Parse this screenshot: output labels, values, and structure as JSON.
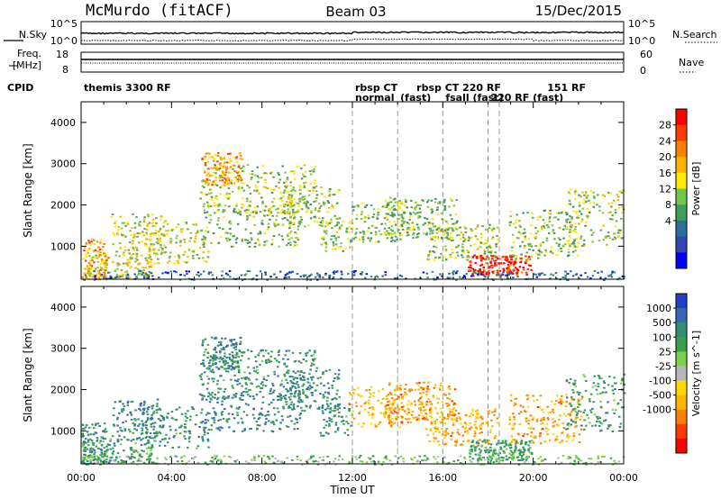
{
  "chart_data": {
    "type": "heatmap",
    "header": {
      "station": "McMurdo (fitACF)",
      "beam": "Beam 03",
      "date": "15/Dec/2015"
    },
    "summary_panels": {
      "nsky_label": "N.Sky",
      "nsky_ticks": [
        "10^5",
        "10^0"
      ],
      "nsearch_label": "N.Search",
      "nsearch_ticks": [
        "10^5",
        "10^0"
      ],
      "freq_label": "Freq.",
      "freq_unit": "[MHz]",
      "freq_ticks": [
        "18",
        "8"
      ],
      "nave_label": "Nave",
      "nave_ticks": [
        "60",
        "0"
      ],
      "cpid_label": "CPID",
      "cpid_segments": [
        {
          "start_hour": 0,
          "label": "themis 3300 RF"
        },
        {
          "start_hour": 12,
          "label": "rbsp CT"
        },
        {
          "start_hour": 12,
          "label": "normal"
        },
        {
          "start_hour": 14,
          "label": "rbsp CT 220 RF"
        },
        {
          "start_hour": 14,
          "label": "(fast)"
        },
        {
          "start_hour": 16,
          "label": "fsall (fast)"
        },
        {
          "start_hour": 18,
          "label": "220 RF (fast)"
        },
        {
          "start_hour": 20.5,
          "label": "151 RF"
        }
      ]
    },
    "panels": [
      {
        "parameter": "Power",
        "colorbar_label": "Power [dB]",
        "colorbar_ticks": [
          "28",
          "24",
          "20",
          "16",
          "12",
          "8",
          "4"
        ],
        "colorbar_colors": [
          "#ff0000",
          "#ff3a00",
          "#ff7f00",
          "#ffb400",
          "#ffe800",
          "#6fc74b",
          "#3a9f5a",
          "#2a6f9c",
          "#3447b7",
          "#0000ff"
        ],
        "ylabel": "Slant Range [km]",
        "ylim": [
          200,
          4500
        ],
        "yticks": [
          1000,
          2000,
          3000,
          4000
        ]
      },
      {
        "parameter": "Velocity",
        "colorbar_label": "Velocity [m s^-1]",
        "colorbar_ticks": [
          "1000",
          "500",
          "100",
          "25",
          "-25",
          "-100",
          "-500",
          "-1000"
        ],
        "colorbar_colors": [
          "#2340c8",
          "#3a67b6",
          "#2f8f73",
          "#3aa04d",
          "#7fd04b",
          "#b7b7b7",
          "#ffd800",
          "#ffb400",
          "#ff7f00",
          "#ff3a00",
          "#ff0000"
        ],
        "ylabel": "Slant Range [km]",
        "ylim": [
          200,
          4500
        ],
        "yticks": [
          1000,
          2000,
          3000,
          4000
        ]
      }
    ],
    "x_axis": {
      "label": "Time UT",
      "ticks": [
        "00:00",
        "04:00",
        "08:00",
        "12:00",
        "16:00",
        "20:00",
        "00:00"
      ],
      "range_hours": [
        0,
        24
      ]
    },
    "mode_change_hours": [
      12,
      14,
      16,
      18,
      18.5
    ]
  }
}
